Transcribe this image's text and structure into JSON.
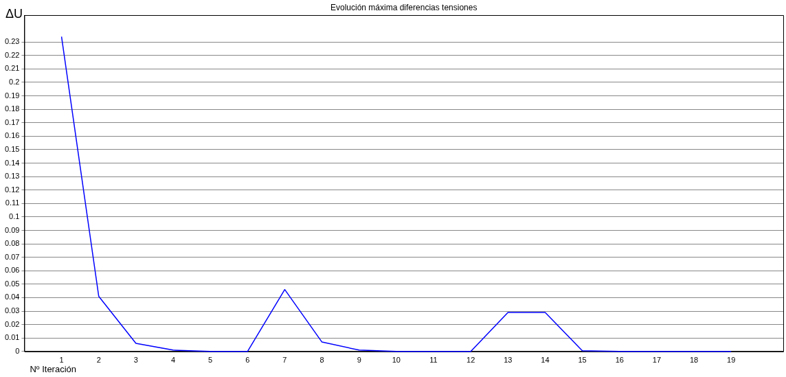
{
  "chart_data": {
    "type": "line",
    "title": "Evolución máxima diferencias tensiones",
    "xlabel": "Nº Iteración",
    "ylabel": "ΔU",
    "x": [
      1,
      2,
      3,
      4,
      5,
      6,
      7,
      8,
      9,
      10,
      11,
      12,
      13,
      14,
      15,
      16,
      17,
      18,
      19
    ],
    "series": [
      {
        "color": "#0000ff",
        "values": [
          0.234,
          0.041,
          0.006,
          0.001,
          0,
          0,
          0.046,
          0.007,
          0.001,
          0,
          0,
          0,
          0.029,
          0.029,
          0.0005,
          0,
          0,
          0,
          0
        ]
      }
    ],
    "xlim": [
      0,
      20.4
    ],
    "xticks": [
      1,
      2,
      3,
      4,
      5,
      6,
      7,
      8,
      9,
      10,
      11,
      12,
      13,
      14,
      15,
      16,
      17,
      18,
      19
    ],
    "ylim": [
      0,
      0.25
    ],
    "yticks": [
      0,
      0.01,
      0.02,
      0.03,
      0.04,
      0.05,
      0.06,
      0.07,
      0.08,
      0.09,
      0.1,
      0.11,
      0.12,
      0.13,
      0.14,
      0.15,
      0.16,
      0.17,
      0.18,
      0.19,
      0.2,
      0.21,
      0.22,
      0.23
    ],
    "grid": "y",
    "legend": false,
    "marker": "none",
    "line_style": "solid"
  }
}
